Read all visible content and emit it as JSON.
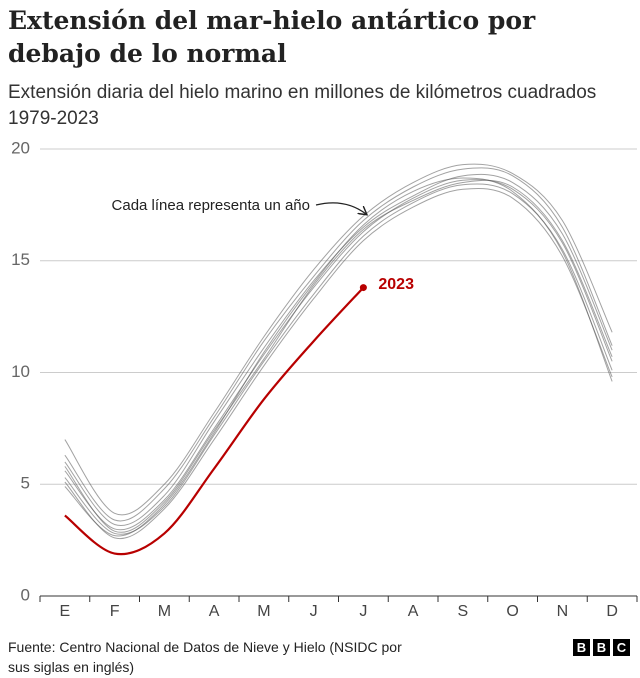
{
  "chart_data": {
    "type": "line",
    "title": "Extensión del mar-hielo antártico por debajo de lo normal",
    "subtitle": "Extensión diaria del hielo marino en millones de kilómetros cuadrados 1979-2023",
    "annotation": "Cada línea representa un año",
    "source": "Fuente: Centro Nacional de Datos de Nieve y Hielo (NSIDC por sus siglas en inglés)",
    "logo": [
      "B",
      "B",
      "C"
    ],
    "categories": [
      "E",
      "F",
      "M",
      "A",
      "M",
      "J",
      "J",
      "A",
      "S",
      "O",
      "N",
      "D"
    ],
    "ylim": [
      0,
      20
    ],
    "yticks": [
      0,
      5,
      10,
      15,
      20
    ],
    "grid": true,
    "series": [
      {
        "color": "#555555",
        "values": [
          5.6,
          3.0,
          4.3,
          7.5,
          10.8,
          13.8,
          16.3,
          17.8,
          18.6,
          18.2,
          15.8,
          10.5
        ]
      },
      {
        "color": "#555555",
        "values": [
          6.3,
          3.4,
          4.8,
          8.0,
          11.4,
          14.3,
          16.8,
          18.3,
          19.1,
          18.8,
          16.5,
          11.2
        ]
      },
      {
        "color": "#555555",
        "values": [
          5.1,
          2.6,
          3.9,
          7.0,
          10.3,
          13.3,
          15.9,
          17.4,
          18.2,
          17.8,
          15.2,
          9.8
        ]
      },
      {
        "color": "#555555",
        "values": [
          6.0,
          3.2,
          4.5,
          7.8,
          11.1,
          14.1,
          16.5,
          17.9,
          18.8,
          18.5,
          16.2,
          11.0
        ]
      },
      {
        "color": "#555555",
        "values": [
          5.3,
          2.8,
          4.0,
          7.2,
          10.5,
          13.5,
          16.1,
          17.6,
          18.4,
          18.0,
          15.5,
          10.1
        ]
      },
      {
        "color": "#555555",
        "values": [
          7.0,
          3.7,
          5.0,
          8.2,
          11.6,
          14.6,
          17.0,
          18.5,
          19.3,
          18.9,
          16.8,
          11.8
        ]
      },
      {
        "color": "#555555",
        "values": [
          5.8,
          2.9,
          4.2,
          7.4,
          10.6,
          13.9,
          16.4,
          17.7,
          18.5,
          18.3,
          15.9,
          10.7
        ]
      },
      {
        "color": "#555555",
        "values": [
          4.9,
          2.7,
          4.1,
          7.3,
          10.9,
          14.0,
          16.6,
          18.1,
          18.7,
          18.1,
          15.4,
          9.6
        ]
      },
      {
        "name": "2023",
        "color": "#b80000",
        "values": [
          3.6,
          1.9,
          2.8,
          5.7,
          8.8,
          11.4,
          13.8,
          null,
          null,
          null,
          null,
          null
        ]
      }
    ]
  }
}
